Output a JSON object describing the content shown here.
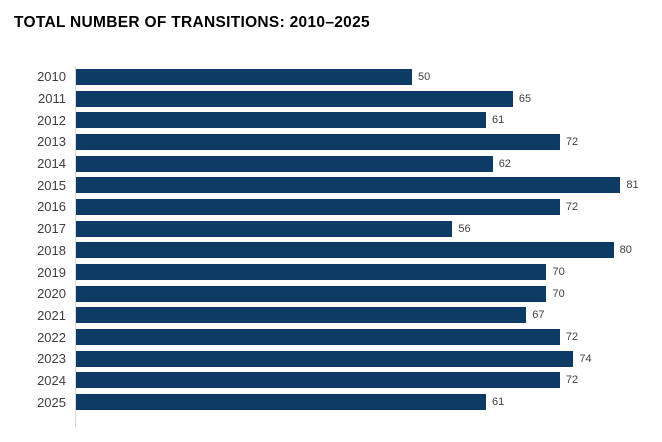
{
  "title": "TOTAL NUMBER OF TRANSITIONS: 2010–2025",
  "chart_data": {
    "type": "bar",
    "orientation": "horizontal",
    "title": "TOTAL NUMBER OF TRANSITIONS: 2010–2025",
    "categories": [
      "2010",
      "2011",
      "2012",
      "2013",
      "2014",
      "2015",
      "2016",
      "2017",
      "2018",
      "2019",
      "2020",
      "2021",
      "2022",
      "2023",
      "2024",
      "2025"
    ],
    "values": [
      50,
      65,
      61,
      72,
      62,
      81,
      72,
      56,
      80,
      70,
      70,
      67,
      72,
      74,
      72,
      61
    ],
    "data_labels": true,
    "xlabel": "",
    "ylabel": "",
    "xlim": [
      0,
      86
    ],
    "grid": false,
    "legend": "none",
    "colors": {
      "bar": "#0e3a66",
      "category_label": "#404040",
      "value_label": "#404040",
      "axis_line": "#d9d9d9",
      "title": "#000000",
      "background": "#ffffff"
    }
  }
}
